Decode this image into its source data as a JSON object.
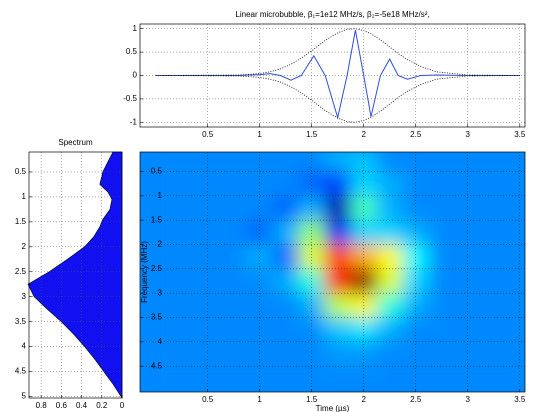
{
  "chart_data": [
    {
      "type": "line",
      "title": "Linear microbubble, β₁=1e12 MHz/s, β₂=-5e18 MHz/s²,",
      "x": [
        0,
        0.8,
        1.0,
        1.1,
        1.2,
        1.3,
        1.4,
        1.52,
        1.63,
        1.75,
        1.84,
        1.92,
        2.0,
        2.07,
        2.16,
        2.25,
        2.33,
        2.42,
        2.55,
        2.7,
        3.0,
        3.5
      ],
      "series": [
        {
          "color": "#2f4fd8",
          "style": "solid",
          "values": [
            0,
            0,
            0.02,
            0.04,
            0,
            -0.1,
            0,
            0.42,
            0,
            -0.9,
            0,
            0.97,
            0,
            -0.88,
            0,
            0.35,
            0,
            -0.08,
            0,
            0.01,
            0,
            0
          ]
        },
        {
          "color": "#000000",
          "style": "dotted",
          "values": [
            0,
            0.01,
            0.04,
            0.08,
            0.14,
            0.24,
            0.37,
            0.56,
            0.75,
            0.91,
            0.99,
            1.0,
            0.96,
            0.89,
            0.76,
            0.61,
            0.47,
            0.34,
            0.19,
            0.08,
            0.01,
            0
          ]
        },
        {
          "color": "#000000",
          "style": "dotted",
          "values": [
            0,
            -0.01,
            -0.04,
            -0.08,
            -0.14,
            -0.24,
            -0.37,
            -0.56,
            -0.75,
            -0.91,
            -0.99,
            -1.0,
            -0.96,
            -0.89,
            -0.76,
            -0.61,
            -0.47,
            -0.34,
            -0.19,
            -0.08,
            -0.01,
            0
          ]
        }
      ],
      "xlim": [
        -0.15,
        3.55
      ],
      "ylim": [
        -1.1,
        1.1
      ],
      "xticks": [
        0.5,
        1,
        1.5,
        2,
        2.5,
        3,
        3.5
      ],
      "yticks": [
        -1,
        -0.5,
        0,
        0.5,
        1
      ],
      "grid": true
    },
    {
      "type": "area",
      "title": "Spectrum",
      "y": [
        0.1,
        0.3,
        0.5,
        0.75,
        0.9,
        1.05,
        1.25,
        1.45,
        1.6,
        1.8,
        2.0,
        2.25,
        2.5,
        2.75,
        3.0,
        3.25,
        3.5,
        3.75,
        4.0,
        4.25,
        4.5,
        4.75,
        5.03
      ],
      "values": [
        0.09,
        0.14,
        0.19,
        0.22,
        0.14,
        0.1,
        0.12,
        0.19,
        0.22,
        0.28,
        0.37,
        0.54,
        0.72,
        0.93,
        0.87,
        0.74,
        0.6,
        0.48,
        0.37,
        0.27,
        0.18,
        0.09,
        0
      ],
      "color": "#1010f0",
      "xlim": [
        0.92,
        0
      ],
      "ylim": [
        5.03,
        0.1
      ],
      "xticks": [
        0.8,
        0.6,
        0.4,
        0.2,
        0
      ],
      "yticks": [
        0.5,
        1,
        1.5,
        2,
        2.5,
        3,
        3.5,
        4,
        4.5,
        5
      ],
      "grid": true
    },
    {
      "type": "heatmap",
      "xlabel": "Time (µs)",
      "ylabel": "Frequency (MHz)",
      "x": [
        0,
        0.25,
        0.5,
        0.75,
        1,
        1.25,
        1.5,
        1.75,
        2,
        2.25,
        2.5,
        2.75,
        3,
        3.25,
        3.5
      ],
      "y": [
        0.25,
        0.75,
        1.25,
        1.75,
        2.25,
        2.75,
        3.25,
        3.75,
        4.25,
        4.75
      ],
      "z": [
        [
          0,
          0,
          0,
          0,
          0,
          0,
          0,
          0.05,
          0.08,
          0,
          0,
          0,
          0,
          0,
          0
        ],
        [
          0,
          0,
          0,
          0,
          0,
          0,
          -0.05,
          -0.1,
          0.1,
          0.05,
          0,
          0,
          0,
          0,
          0
        ],
        [
          0,
          0,
          0,
          0,
          0,
          -0.05,
          0.05,
          -0.3,
          0.25,
          0.05,
          0,
          0,
          0,
          0,
          0
        ],
        [
          0,
          0,
          0,
          0,
          -0.05,
          0.05,
          0.35,
          -0.2,
          0.1,
          0.1,
          0.05,
          0,
          0,
          0,
          0
        ],
        [
          0,
          0,
          0,
          0,
          0.05,
          -0.05,
          0.45,
          0.75,
          0.6,
          0.5,
          0.15,
          0,
          0,
          0,
          0
        ],
        [
          0,
          0,
          0,
          0,
          0,
          0.05,
          0.2,
          0.8,
          1.0,
          0.45,
          0.1,
          0,
          0,
          0,
          0
        ],
        [
          0,
          0,
          0,
          0,
          0,
          0,
          0.05,
          0.4,
          0.5,
          0.2,
          0.05,
          0,
          0,
          0,
          0
        ],
        [
          0,
          0,
          0,
          0,
          0,
          0,
          0,
          0.08,
          0.12,
          0.05,
          0,
          0,
          0,
          0,
          0
        ],
        [
          0,
          0,
          0,
          0,
          0,
          0,
          0,
          0.02,
          0.02,
          0,
          0,
          0,
          0,
          0,
          0
        ],
        [
          0,
          0,
          0,
          0,
          0,
          0,
          0,
          0,
          0,
          0,
          0,
          0,
          0,
          0,
          0
        ]
      ],
      "zlim": [
        -0.35,
        1.0
      ],
      "xlim": [
        -0.15,
        3.55
      ],
      "ylim": [
        5.03,
        0.1
      ],
      "xticks": [
        0.5,
        1,
        1.5,
        2,
        2.5,
        3,
        3.5
      ],
      "yticks": [
        0.5,
        1,
        1.5,
        2,
        2.5,
        3,
        3.5,
        4,
        4.5
      ],
      "grid": true
    }
  ]
}
